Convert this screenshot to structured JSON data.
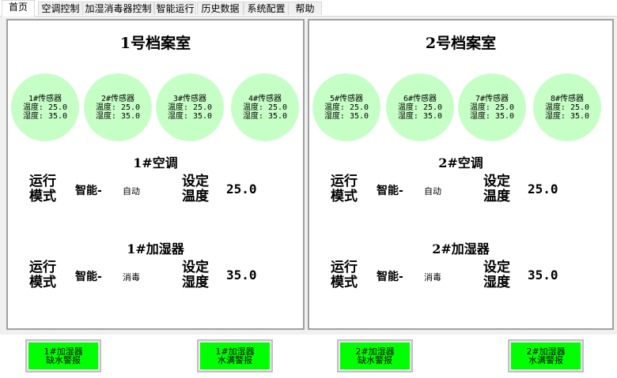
{
  "tabs": [
    "首页",
    "空调控制",
    "加湿消毒器控制",
    "智能运行",
    "历史数据",
    "系统配置",
    "帮助"
  ],
  "rooms": [
    {
      "title": "1号档案室",
      "sensors": [
        {
          "name": "1#传感器",
          "temp": "温度: 25.0",
          "hum": "湿度: 35.0"
        },
        {
          "name": "2#传感器",
          "temp": "温度: 25.0",
          "hum": "湿度: 35.0"
        },
        {
          "name": "3#传感器",
          "temp": "温度: 25.0",
          "hum": "湿度: 35.0"
        },
        {
          "name": "4#传感器",
          "temp": "温度: 25.0",
          "hum": "湿度: 35.0"
        }
      ],
      "ac": {
        "title": "1#空调",
        "mode_label": [
          "运行",
          "模式"
        ],
        "mode": "智能-",
        "mode_value": "自动",
        "set_label": [
          "设定",
          "温度"
        ],
        "set_value": "25.0"
      },
      "hum": {
        "title": "1#加湿器",
        "mode_label": [
          "运行",
          "模式"
        ],
        "mode": "智能-",
        "mode_value": "消毒",
        "set_label": [
          "设定",
          "湿度"
        ],
        "set_value": "35.0"
      }
    },
    {
      "title": "2号档案室",
      "sensors": [
        {
          "name": "5#传感器",
          "temp": "温度: 25.0",
          "hum": "湿度: 35.0"
        },
        {
          "name": "6#传感器",
          "temp": "温度: 25.0",
          "hum": "湿度: 35.0"
        },
        {
          "name": "7#传感器",
          "temp": "温度: 25.0",
          "hum": "湿度: 35.0"
        },
        {
          "name": "8#传感器",
          "temp": "温度: 25.0",
          "hum": "湿度: 35.0"
        }
      ],
      "ac": {
        "title": "2#空调",
        "mode_label": [
          "运行",
          "模式"
        ],
        "mode": "智能-",
        "mode_value": "自动",
        "set_label": [
          "设定",
          "温度"
        ],
        "set_value": "25.0"
      },
      "hum": {
        "title": "2#加湿器",
        "mode_label": [
          "运行",
          "模式"
        ],
        "mode": "智能-",
        "mode_value": "消毒",
        "set_label": [
          "设定",
          "湿度"
        ],
        "set_value": "35.0"
      }
    }
  ],
  "alarms": [
    [
      "1#加湿器",
      "缺水警报"
    ],
    [
      "1#加湿器",
      "水满警报"
    ],
    [
      "2#加湿器",
      "缺水警报"
    ],
    [
      "2#加湿器",
      "水满警报"
    ]
  ],
  "colors": {
    "sensor": "#c6ffc6",
    "alarm": "#00ff00"
  }
}
